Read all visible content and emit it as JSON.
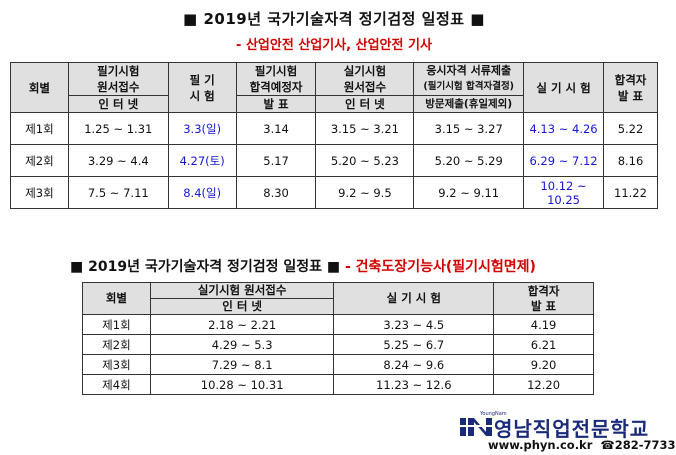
{
  "title1": "■ 2019년 국가기술자격 정기검정 일정표 ■",
  "subtitle1": "- 산업안전 산업기사, 산업안전 기사",
  "table1": {
    "headers": {
      "col1": "회별",
      "col2a": "필기시험",
      "col2b": "원서접수",
      "col2c": "인 터 넷",
      "col3a": "필 기",
      "col3b": "시 험",
      "col4a": "필기시험",
      "col4b": "합격예정자",
      "col4c": "발 표",
      "col5a": "실기시험",
      "col5b": "원서접수",
      "col5c": "인 터 넷",
      "col6a": "응시자격 서류제출",
      "col6b": "(필기시험 합격자결정)",
      "col6c": "방문제출(휴일제외)",
      "col7": "실 기 시 험",
      "col8a": "합격자",
      "col8b": "발 표"
    },
    "rows": [
      {
        "round": "제1회",
        "app": "1.25 ~ 1.31",
        "exam": "3.3(일)",
        "prelim": "3.14",
        "p_app": "3.15 ~ 3.21",
        "docs": "3.15 ~ 3.27",
        "practical": "4.13 ~ 4.26",
        "result": "5.22"
      },
      {
        "round": "제2회",
        "app": "3.29 ~ 4.4",
        "exam": "4.27(토)",
        "prelim": "5.17",
        "p_app": "5.20 ~ 5.23",
        "docs": "5.20 ~ 5.29",
        "practical": "6.29 ~ 7.12",
        "result": "8.16"
      },
      {
        "round": "제3회",
        "app": "7.5 ~ 7.11",
        "exam": "8.4(일)",
        "prelim": "8.30",
        "p_app": "9.2 ~ 9.5",
        "docs": "9.2 ~ 9.11",
        "practical": "10.12 ~ 10.25",
        "result": "11.22"
      }
    ]
  },
  "title2": "■ 2019년 국가기술자격 정기검정 일정표 ■",
  "subtitle2": "- 건축도장기능사(필기시험면제)",
  "table2": {
    "headers": {
      "col1": "회별",
      "col2a": "실기시험 원서접수",
      "col2b": "인 터 넷",
      "col3": "실 기 시 험",
      "col4a": "합격자",
      "col4b": "발 표"
    },
    "rows": [
      {
        "round": "제1회",
        "app": "2.18 ~ 2.21",
        "practical": "3.23 ~ 4.5",
        "result": "4.19"
      },
      {
        "round": "제2회",
        "app": "4.29 ~ 5.3",
        "practical": "5.25 ~ 6.7",
        "result": "6.21"
      },
      {
        "round": "제3회",
        "app": "7.29 ~ 8.1",
        "practical": "8.24 ~ 9.6",
        "result": "9.20"
      },
      {
        "round": "제4회",
        "app": "10.28 ~ 10.31",
        "practical": "11.23 ~ 12.6",
        "result": "12.20"
      }
    ]
  },
  "logo": {
    "small": "YoungNam",
    "name": "영남직업전문학교",
    "url": "www.phyn.co.kr",
    "phone": "☎282-7733"
  },
  "colors": {
    "accent_red": "#d40000",
    "accent_blue": "#1515d6",
    "brand_navy": "#1a2a7a"
  }
}
